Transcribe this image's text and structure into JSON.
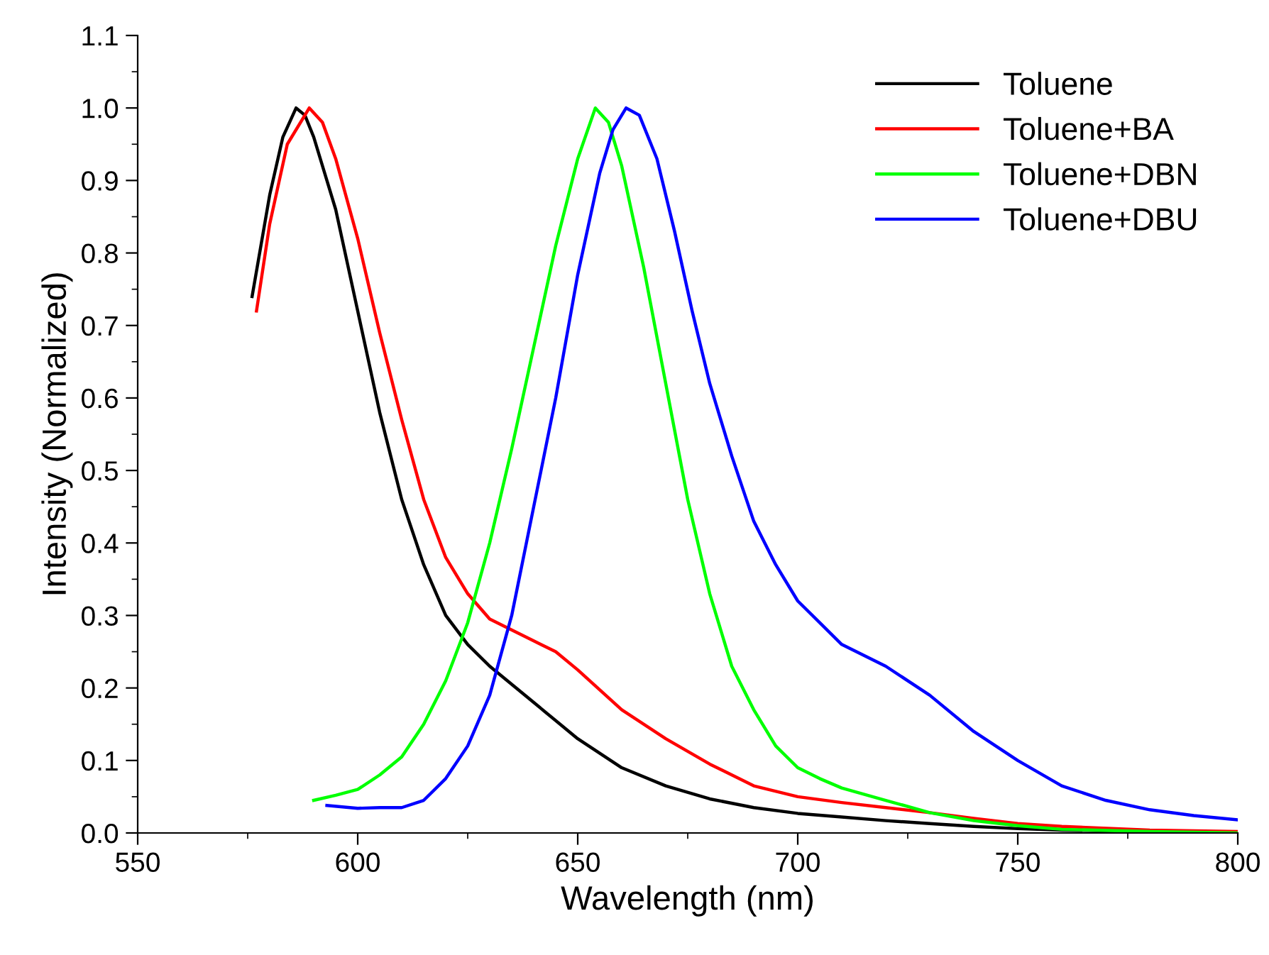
{
  "chart_data": {
    "type": "line",
    "xlabel": "Wavelength (nm)",
    "ylabel": "Intensity (Normalized)",
    "xlim": [
      550,
      800
    ],
    "xticks": [
      550,
      600,
      650,
      700,
      750,
      800
    ],
    "ylim": [
      0,
      1.1
    ],
    "yticks": [
      {
        "value": 0,
        "label": "0.0"
      },
      0.1,
      0.2,
      0.3,
      0.4,
      0.5,
      0.6,
      0.7,
      0.8,
      0.9,
      {
        "value": 1.0,
        "label": "1.0"
      },
      1.1
    ],
    "grid": false,
    "legend": "top right",
    "marker": "none",
    "line_style": "solid",
    "series": [
      {
        "name": "Toluene",
        "color": "#000000",
        "x": [
          576,
          580,
          583,
          586,
          588,
          590,
          595,
          600,
          605,
          610,
          615,
          620,
          625,
          630,
          640,
          650,
          660,
          670,
          680,
          690,
          700,
          710,
          720,
          730,
          740,
          750,
          760,
          780,
          800
        ],
        "values": [
          0.74,
          0.88,
          0.96,
          1.0,
          0.99,
          0.96,
          0.86,
          0.72,
          0.58,
          0.46,
          0.37,
          0.3,
          0.26,
          0.23,
          0.18,
          0.13,
          0.09,
          0.065,
          0.047,
          0.035,
          0.027,
          0.022,
          0.017,
          0.013,
          0.009,
          0.006,
          0.004,
          0.002,
          0.001
        ]
      },
      {
        "name": "Toluene+BA",
        "color": "#ff0000",
        "x": [
          577,
          580,
          584,
          589,
          592,
          595,
          600,
          605,
          610,
          615,
          620,
          625,
          630,
          640,
          645,
          650,
          660,
          670,
          680,
          690,
          700,
          710,
          720,
          730,
          740,
          750,
          760,
          780,
          800
        ],
        "values": [
          0.72,
          0.84,
          0.95,
          1.0,
          0.98,
          0.93,
          0.82,
          0.69,
          0.57,
          0.46,
          0.38,
          0.33,
          0.295,
          0.265,
          0.25,
          0.225,
          0.17,
          0.13,
          0.095,
          0.065,
          0.05,
          0.042,
          0.035,
          0.028,
          0.02,
          0.013,
          0.009,
          0.004,
          0.002
        ]
      },
      {
        "name": "Toluene+DBN",
        "color": "#00ff00",
        "x": [
          590,
          595,
          600,
          605,
          610,
          615,
          620,
          625,
          630,
          635,
          640,
          645,
          650,
          654,
          657,
          660,
          665,
          670,
          675,
          680,
          685,
          690,
          695,
          700,
          705,
          710,
          720,
          730,
          740,
          750,
          760,
          780,
          800
        ],
        "values": [
          0.045,
          0.052,
          0.06,
          0.08,
          0.105,
          0.15,
          0.21,
          0.29,
          0.4,
          0.53,
          0.67,
          0.81,
          0.93,
          1.0,
          0.98,
          0.92,
          0.78,
          0.62,
          0.46,
          0.33,
          0.23,
          0.17,
          0.12,
          0.09,
          0.075,
          0.062,
          0.045,
          0.028,
          0.017,
          0.01,
          0.005,
          0.002,
          0.0
        ]
      },
      {
        "name": "Toluene+DBU",
        "color": "#0000ff",
        "x": [
          593,
          600,
          605,
          610,
          615,
          620,
          625,
          630,
          635,
          640,
          645,
          650,
          655,
          658,
          661,
          664,
          668,
          672,
          676,
          680,
          685,
          690,
          695,
          700,
          705,
          710,
          720,
          730,
          740,
          750,
          760,
          770,
          780,
          790,
          800
        ],
        "values": [
          0.038,
          0.034,
          0.035,
          0.035,
          0.045,
          0.075,
          0.12,
          0.19,
          0.3,
          0.45,
          0.6,
          0.77,
          0.91,
          0.97,
          1.0,
          0.99,
          0.93,
          0.83,
          0.72,
          0.62,
          0.52,
          0.43,
          0.37,
          0.32,
          0.29,
          0.26,
          0.23,
          0.19,
          0.14,
          0.1,
          0.065,
          0.045,
          0.032,
          0.024,
          0.018
        ]
      }
    ]
  }
}
